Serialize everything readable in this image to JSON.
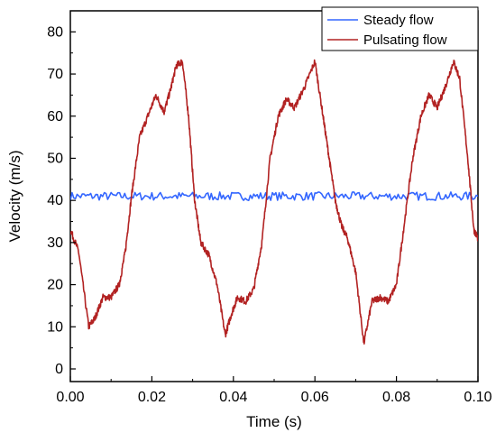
{
  "chart_data": {
    "type": "line",
    "xlabel": "Time (s)",
    "ylabel": "Velocity (m/s)",
    "xlim": [
      0.0,
      0.1
    ],
    "ylim": [
      -3,
      85
    ],
    "xticks": [
      0.0,
      0.02,
      0.04,
      0.06,
      0.08,
      0.1
    ],
    "xtick_labels": [
      "0.00",
      "0.02",
      "0.04",
      "0.06",
      "0.08",
      "0.10"
    ],
    "yticks": [
      0,
      10,
      20,
      30,
      40,
      50,
      60,
      70,
      80
    ],
    "ytick_labels": [
      "0",
      "10",
      "20",
      "30",
      "40",
      "50",
      "60",
      "70",
      "80"
    ],
    "grid": false,
    "legend_position": "top-right",
    "series": [
      {
        "name": "Steady flow",
        "color": "#3366ff",
        "x": [
          0.0,
          0.01,
          0.02,
          0.03,
          0.04,
          0.05,
          0.06,
          0.07,
          0.08,
          0.09,
          0.1
        ],
        "y": [
          41,
          41,
          41,
          41,
          41,
          41,
          41,
          41,
          41,
          41,
          41
        ]
      },
      {
        "name": "Pulsating flow",
        "color": "#b22222",
        "x": [
          0.0,
          0.002,
          0.0045,
          0.006,
          0.008,
          0.01,
          0.012,
          0.0135,
          0.015,
          0.017,
          0.019,
          0.021,
          0.023,
          0.0245,
          0.026,
          0.0275,
          0.029,
          0.0305,
          0.032,
          0.034,
          0.036,
          0.038,
          0.0395,
          0.041,
          0.043,
          0.045,
          0.047,
          0.049,
          0.051,
          0.053,
          0.055,
          0.0575,
          0.06,
          0.062,
          0.0635,
          0.065,
          0.0665,
          0.068,
          0.07,
          0.072,
          0.074,
          0.076,
          0.078,
          0.08,
          0.082,
          0.084,
          0.086,
          0.088,
          0.09,
          0.092,
          0.094,
          0.0955,
          0.0975,
          0.099,
          0.1
        ],
        "y": [
          33,
          28,
          10,
          12,
          17,
          17,
          20,
          28,
          41,
          55,
          60,
          65,
          61,
          66,
          72,
          73,
          60,
          40,
          30,
          27,
          20,
          8,
          13,
          17,
          16,
          19,
          30,
          50,
          60,
          64,
          62,
          67,
          73,
          60,
          50,
          40,
          34,
          31,
          23,
          6,
          16,
          17,
          16,
          20,
          35,
          50,
          60,
          65,
          62,
          67,
          73,
          69,
          50,
          33,
          31
        ]
      }
    ]
  }
}
